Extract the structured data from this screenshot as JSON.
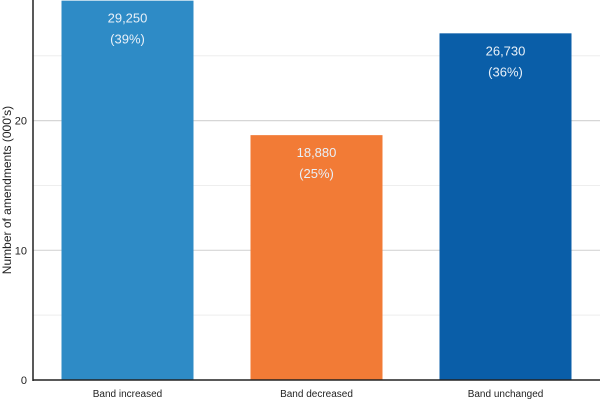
{
  "chart_data": {
    "type": "bar",
    "title": "",
    "xlabel": "",
    "ylabel": "Number of amendments (000's)",
    "ylim": [
      0,
      29.3
    ],
    "yticks": [
      0,
      10,
      20
    ],
    "minor_gridlines": [
      5,
      15,
      25
    ],
    "grid": true,
    "categories": [
      "Band increased",
      "Band decreased",
      "Band unchanged"
    ],
    "values": [
      29.25,
      18.88,
      26.73
    ],
    "data_labels": [
      "29,250",
      "18,880",
      "26,730"
    ],
    "percent_labels": [
      "(39%)",
      "(25%)",
      "(36%)"
    ],
    "colors": [
      "#2e8bc6",
      "#f27b36",
      "#0a5ea8"
    ]
  }
}
